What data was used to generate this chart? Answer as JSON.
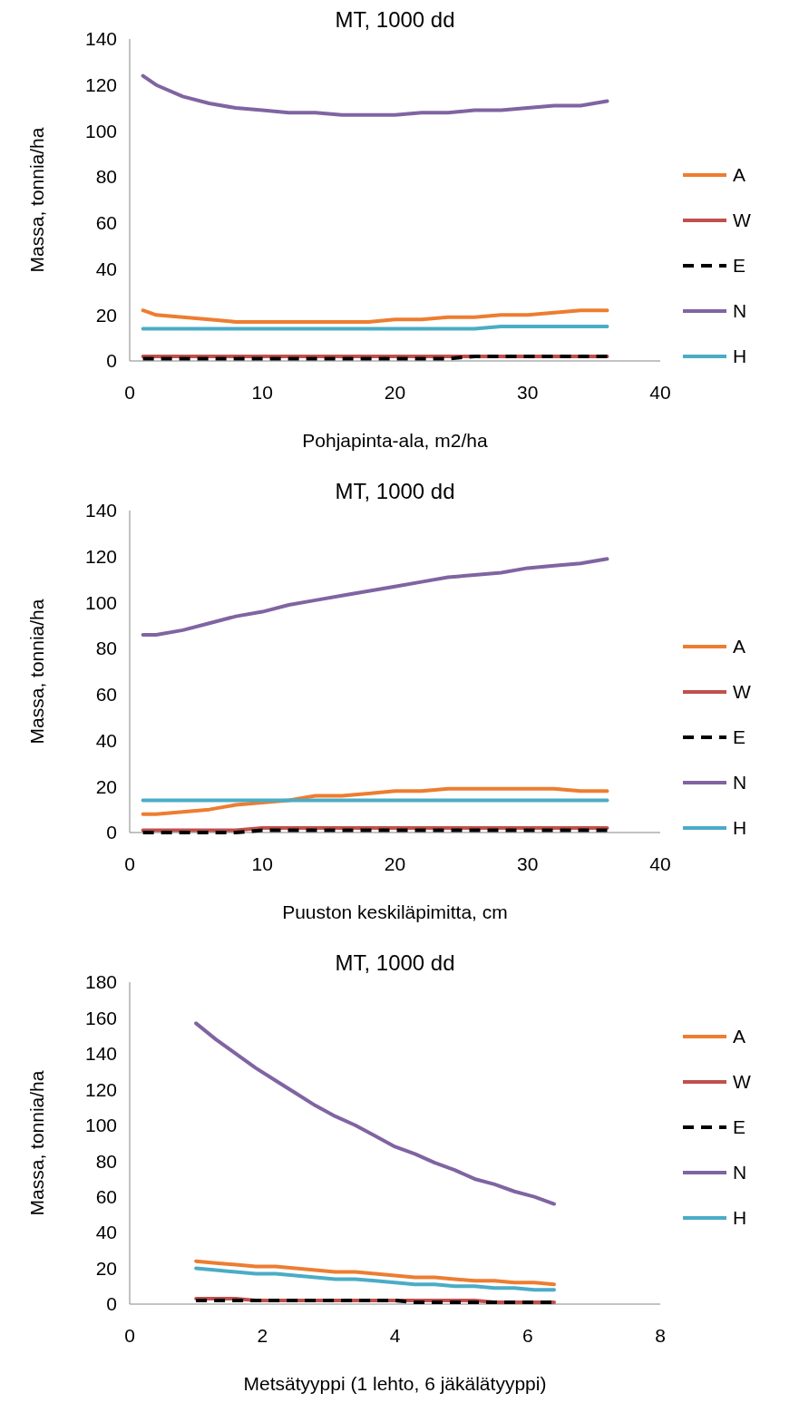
{
  "chart_data": [
    {
      "type": "line",
      "title": "MT, 1000 dd",
      "xlabel": "Pohjapinta-ala, m2/ha",
      "ylabel": "Massa, tonnia/ha",
      "x": [
        1,
        2,
        4,
        6,
        8,
        10,
        12,
        14,
        16,
        18,
        20,
        22,
        24,
        26,
        28,
        30,
        32,
        34,
        36
      ],
      "xlim": [
        0,
        40
      ],
      "xticks": [
        0,
        10,
        20,
        30,
        40
      ],
      "ylim": [
        0,
        140
      ],
      "yticks": [
        0,
        20,
        40,
        60,
        80,
        100,
        120,
        140
      ],
      "legend": "right",
      "grid": false,
      "series": [
        {
          "name": "A",
          "color": "#ed7d31",
          "values": [
            22,
            20,
            19,
            18,
            17,
            17,
            17,
            17,
            17,
            17,
            18,
            18,
            19,
            19,
            20,
            20,
            21,
            22,
            22
          ]
        },
        {
          "name": "W",
          "color": "#c0504d",
          "values": [
            2,
            2,
            2,
            2,
            2,
            2,
            2,
            2,
            2,
            2,
            2,
            2,
            2,
            2,
            2,
            2,
            2,
            2,
            2
          ]
        },
        {
          "name": "E",
          "color": "#000000",
          "line_style": "dashed",
          "values": [
            1,
            1,
            1,
            1,
            1,
            1,
            1,
            1,
            1,
            1,
            1,
            1,
            1,
            2,
            2,
            2,
            2,
            2,
            2
          ]
        },
        {
          "name": "N",
          "color": "#8064a2",
          "values": [
            124,
            120,
            115,
            112,
            110,
            109,
            108,
            108,
            107,
            107,
            107,
            108,
            108,
            109,
            109,
            110,
            111,
            111,
            113
          ]
        },
        {
          "name": "H",
          "color": "#4bacc6",
          "values": [
            14,
            14,
            14,
            14,
            14,
            14,
            14,
            14,
            14,
            14,
            14,
            14,
            14,
            14,
            15,
            15,
            15,
            15,
            15
          ]
        }
      ]
    },
    {
      "type": "line",
      "title": "MT, 1000 dd",
      "xlabel": "Puuston keskiläpimitta, cm",
      "ylabel": "Massa, tonnia/ha",
      "x": [
        1,
        2,
        4,
        6,
        8,
        10,
        12,
        14,
        16,
        18,
        20,
        22,
        24,
        26,
        28,
        30,
        32,
        34,
        36
      ],
      "xlim": [
        0,
        40
      ],
      "xticks": [
        0,
        10,
        20,
        30,
        40
      ],
      "ylim": [
        0,
        140
      ],
      "yticks": [
        0,
        20,
        40,
        60,
        80,
        100,
        120,
        140
      ],
      "legend": "right",
      "grid": false,
      "series": [
        {
          "name": "A",
          "color": "#ed7d31",
          "values": [
            8,
            8,
            9,
            10,
            12,
            13,
            14,
            16,
            16,
            17,
            18,
            18,
            19,
            19,
            19,
            19,
            19,
            18,
            18
          ]
        },
        {
          "name": "W",
          "color": "#c0504d",
          "values": [
            1,
            1,
            1,
            1,
            1,
            2,
            2,
            2,
            2,
            2,
            2,
            2,
            2,
            2,
            2,
            2,
            2,
            2,
            2
          ]
        },
        {
          "name": "E",
          "color": "#000000",
          "line_style": "dashed",
          "values": [
            0,
            0,
            0,
            0,
            0,
            1,
            1,
            1,
            1,
            1,
            1,
            1,
            1,
            1,
            1,
            1,
            1,
            1,
            1
          ]
        },
        {
          "name": "N",
          "color": "#8064a2",
          "values": [
            86,
            86,
            88,
            91,
            94,
            96,
            99,
            101,
            103,
            105,
            107,
            109,
            111,
            112,
            113,
            115,
            116,
            117,
            119
          ]
        },
        {
          "name": "H",
          "color": "#4bacc6",
          "values": [
            14,
            14,
            14,
            14,
            14,
            14,
            14,
            14,
            14,
            14,
            14,
            14,
            14,
            14,
            14,
            14,
            14,
            14,
            14
          ]
        }
      ]
    },
    {
      "type": "line",
      "title": "MT, 1000 dd",
      "xlabel": "Metsätyyppi (1 lehto, 6 jäkälätyyppi)",
      "ylabel": "Massa, tonnia/ha",
      "x": [
        1,
        1.3,
        1.6,
        1.9,
        2.2,
        2.5,
        2.8,
        3.1,
        3.4,
        3.7,
        4,
        4.3,
        4.6,
        4.9,
        5.2,
        5.5,
        5.8,
        6.1,
        6.4
      ],
      "xlim": [
        0,
        8
      ],
      "xticks": [
        0,
        2,
        4,
        6,
        8
      ],
      "ylim": [
        0,
        180
      ],
      "yticks": [
        0,
        20,
        40,
        60,
        80,
        100,
        120,
        140,
        160,
        180
      ],
      "legend": "top right",
      "grid": false,
      "series": [
        {
          "name": "A",
          "color": "#ed7d31",
          "values": [
            24,
            23,
            22,
            21,
            21,
            20,
            19,
            18,
            18,
            17,
            16,
            15,
            15,
            14,
            13,
            13,
            12,
            12,
            11
          ]
        },
        {
          "name": "W",
          "color": "#c0504d",
          "values": [
            3,
            3,
            3,
            2,
            2,
            2,
            2,
            2,
            2,
            2,
            2,
            2,
            2,
            2,
            2,
            1,
            1,
            1,
            1
          ]
        },
        {
          "name": "E",
          "color": "#000000",
          "line_style": "dashed",
          "values": [
            2,
            2,
            2,
            2,
            2,
            2,
            2,
            2,
            2,
            2,
            2,
            1,
            1,
            1,
            1,
            1,
            1,
            1,
            1
          ]
        },
        {
          "name": "N",
          "color": "#8064a2",
          "values": [
            157,
            148,
            140,
            132,
            125,
            118,
            111,
            105,
            100,
            94,
            88,
            84,
            79,
            75,
            70,
            67,
            63,
            60,
            56
          ]
        },
        {
          "name": "H",
          "color": "#4bacc6",
          "values": [
            20,
            19,
            18,
            17,
            17,
            16,
            15,
            14,
            14,
            13,
            12,
            11,
            11,
            10,
            10,
            9,
            9,
            8,
            8
          ]
        }
      ]
    }
  ]
}
